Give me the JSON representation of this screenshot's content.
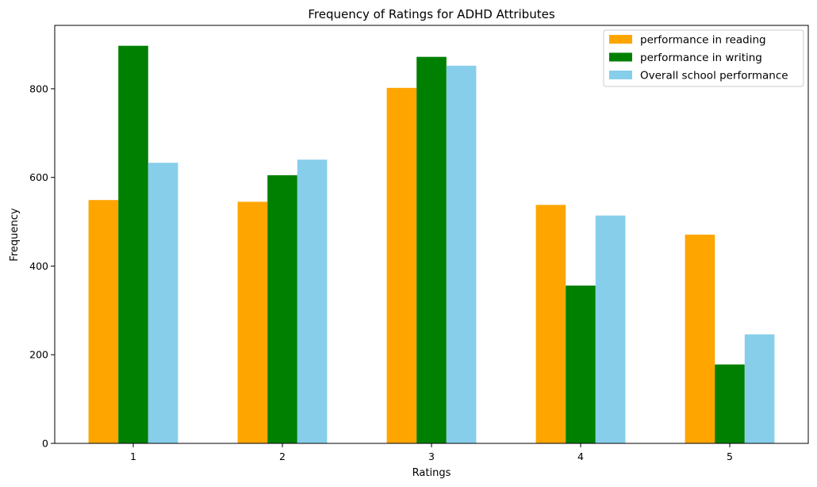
{
  "chart_data": {
    "type": "bar",
    "title": "Frequency of Ratings for ADHD Attributes",
    "xlabel": "Ratings",
    "ylabel": "Frequency",
    "categories": [
      "1",
      "2",
      "3",
      "4",
      "5"
    ],
    "ylim": [
      0,
      943
    ],
    "yticks": [
      0,
      200,
      400,
      600,
      800
    ],
    "grid": false,
    "legend_position": "top-right",
    "series": [
      {
        "name": "performance in reading",
        "color": "#FFA500",
        "values": [
          549,
          545,
          802,
          538,
          471
        ]
      },
      {
        "name": "performance in writing",
        "color": "#008000",
        "values": [
          897,
          605,
          872,
          356,
          178
        ]
      },
      {
        "name": "Overall school performance",
        "color": "#87CEEB",
        "values": [
          633,
          640,
          852,
          514,
          246
        ]
      }
    ]
  }
}
